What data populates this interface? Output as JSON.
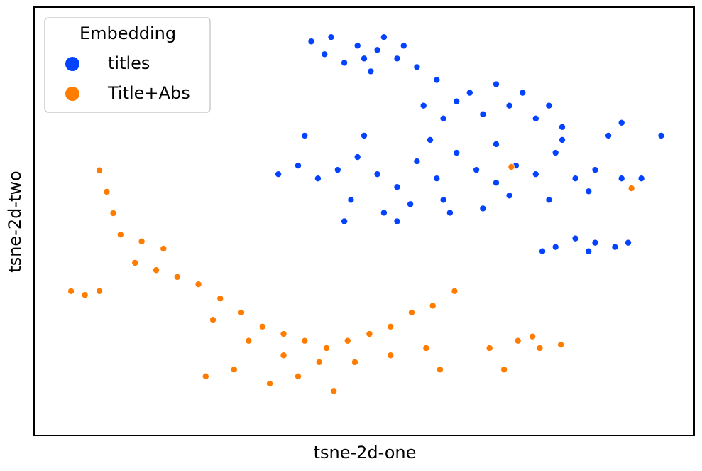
{
  "chart_data": {
    "type": "scatter",
    "xlabel": "tsne-2d-one",
    "ylabel": "tsne-2d-two",
    "xlim": [
      0,
      100
    ],
    "ylim": [
      0,
      100
    ],
    "legend_title": "Embedding",
    "legend": "upper left",
    "series": [
      {
        "name": "titles",
        "color": "#0343ff",
        "x": [
          42,
          45,
          49,
          52,
          55,
          47,
          51,
          58,
          44,
          53,
          56,
          50,
          61,
          66,
          70,
          74,
          78,
          59,
          68,
          64,
          72,
          76,
          62,
          80,
          37,
          40,
          43,
          46,
          49,
          52,
          55,
          58,
          61,
          64,
          67,
          70,
          73,
          76,
          79,
          82,
          85,
          89,
          92,
          48,
          53,
          57,
          62,
          68,
          72,
          78,
          84,
          41,
          50,
          60,
          70,
          80,
          87,
          47,
          55,
          63,
          77,
          79,
          82,
          85,
          88,
          90,
          84,
          95,
          89
        ],
        "values": [
          92,
          93,
          91,
          90,
          88,
          87,
          85,
          86,
          89,
          93,
          91,
          88,
          83,
          80,
          82,
          80,
          77,
          77,
          75,
          78,
          77,
          74,
          74,
          72,
          61,
          63,
          60,
          62,
          65,
          61,
          58,
          64,
          60,
          66,
          62,
          59,
          63,
          61,
          66,
          60,
          62,
          60,
          60,
          55,
          52,
          54,
          55,
          53,
          56,
          55,
          57,
          70,
          70,
          69,
          68,
          69,
          70,
          50,
          50,
          52,
          43,
          44,
          46,
          45,
          44,
          45,
          43,
          70,
          73
        ]
      },
      {
        "name": "Title+Abs",
        "color": "#ff7c00",
        "x": [
          9.9,
          11,
          12,
          13.1,
          16.3,
          19.6,
          15.3,
          18.5,
          21.7,
          5.6,
          7.7,
          9.9,
          24.9,
          28.2,
          31.4,
          34.6,
          37.8,
          41,
          44.3,
          47.5,
          50.8,
          54,
          57.2,
          60.4,
          63.7,
          27.1,
          32.5,
          37.8,
          43.2,
          48.6,
          54,
          59.4,
          40,
          45.4,
          35.7,
          26,
          30.3,
          61.5,
          69,
          71.2,
          73.3,
          76.6,
          79.8,
          75.5,
          72.3,
          90.5
        ],
        "values": [
          61.9,
          56.9,
          51.9,
          46.9,
          45.3,
          43.6,
          40.3,
          38.6,
          37,
          33.7,
          32.8,
          33.7,
          35.3,
          32,
          28.7,
          25.4,
          23.7,
          22.1,
          20.4,
          22.1,
          23.7,
          25.4,
          28.7,
          30.3,
          33.7,
          27,
          22.1,
          18.7,
          17.1,
          17.1,
          18.7,
          20.4,
          13.8,
          10.4,
          12.1,
          13.8,
          15.4,
          15.4,
          20.4,
          15.4,
          22.1,
          20.4,
          21.2,
          23.1,
          62.7,
          57.7
        ]
      }
    ]
  }
}
